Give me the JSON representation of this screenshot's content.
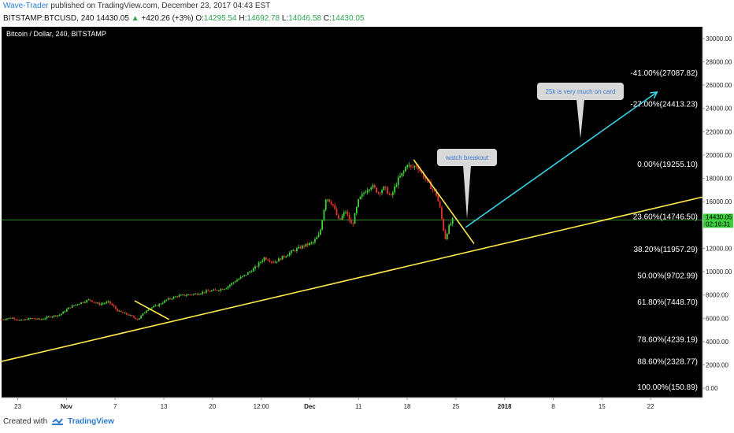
{
  "header": {
    "author": "Wave-Trader",
    "published_text": "published on TradingView.com, December 23, 2017 04:43 EST",
    "symbol_line": "BITSTAMP:BTCUSD, 240",
    "last": "14430.05",
    "change": "+420.26 (+3%)",
    "open_label": "O:",
    "open": "14295.54",
    "high_label": "H:",
    "high": "14692.78",
    "low_label": "L:",
    "low": "14046.58",
    "close_label": "C:",
    "close": "14430.05"
  },
  "footer": {
    "created_with": "Created with",
    "brand": "TradingView"
  },
  "chart_data": {
    "type": "candlestick",
    "title": "Bitcoin / Dollar, 240, BITSTAMP",
    "x_tick_labels": [
      "23",
      "Nov",
      "7",
      "13",
      "20",
      "12:00",
      "Dec",
      "11",
      "18",
      "25",
      "2018",
      "8",
      "15",
      "22"
    ],
    "y_tick_labels": [
      "30000.00",
      "28000.00",
      "26000.00",
      "24000.00",
      "22000.00",
      "20000.00",
      "18000.00",
      "16000.00",
      "14000.00",
      "12000.00",
      "10000.00",
      "8000.00",
      "6000.00",
      "4000.00",
      "2000.00",
      "0.00"
    ],
    "ylim": [
      -800,
      31000
    ],
    "current_price": "14430.05",
    "countdown": "02:16:31",
    "fib_levels": [
      {
        "label": "-41.00%(27087.82)",
        "value": 27087.82
      },
      {
        "label": "-27.00%(24413.23)",
        "value": 24413.23
      },
      {
        "label": "0.00%(19255.10)",
        "value": 19255.1
      },
      {
        "label": "23.60%(14746.50)",
        "value": 14746.5
      },
      {
        "label": "38.20%(11957.29)",
        "value": 11957.29
      },
      {
        "label": "50.00%(9702.99)",
        "value": 9702.99
      },
      {
        "label": "61.80%(7448.70)",
        "value": 7448.7
      },
      {
        "label": "78.60%(4239.19)",
        "value": 4239.19
      },
      {
        "label": "88.60%(2328.77)",
        "value": 2328.77
      },
      {
        "label": "100.00%(150.89)",
        "value": 150.89
      }
    ],
    "annotations": [
      {
        "text": "watch breakout"
      },
      {
        "text": "25k is very much on card"
      }
    ],
    "price_path": [
      [
        0,
        5900
      ],
      [
        1.5,
        6050
      ],
      [
        3,
        5800
      ],
      [
        4.5,
        6000
      ],
      [
        6,
        5900
      ],
      [
        7.5,
        6150
      ],
      [
        9,
        6300
      ],
      [
        10.5,
        6950
      ],
      [
        12,
        7300
      ],
      [
        13.5,
        7600
      ],
      [
        15,
        7200
      ],
      [
        16.5,
        7400
      ],
      [
        18,
        6600
      ],
      [
        19.5,
        6300
      ],
      [
        21,
        5900
      ],
      [
        22.5,
        6800
      ],
      [
        24,
        7100
      ],
      [
        25.5,
        7600
      ],
      [
        27,
        7900
      ],
      [
        28.5,
        8000
      ],
      [
        30,
        8100
      ],
      [
        31.5,
        8300
      ],
      [
        33,
        8400
      ],
      [
        34.5,
        8600
      ],
      [
        36,
        9200
      ],
      [
        37.5,
        9700
      ],
      [
        39,
        10300
      ],
      [
        40.5,
        11200
      ],
      [
        42,
        10800
      ],
      [
        43.5,
        11300
      ],
      [
        45,
        11800
      ],
      [
        46.5,
        12200
      ],
      [
        48,
        12500
      ],
      [
        49,
        13200
      ],
      [
        50,
        16400
      ],
      [
        51,
        15800
      ],
      [
        52,
        14300
      ],
      [
        53,
        15200
      ],
      [
        54,
        13900
      ],
      [
        55,
        16100
      ],
      [
        56,
        16900
      ],
      [
        57,
        17400
      ],
      [
        58,
        16800
      ],
      [
        59,
        17200
      ],
      [
        60,
        16400
      ],
      [
        61,
        17800
      ],
      [
        62,
        18600
      ],
      [
        62.5,
        19300
      ],
      [
        63,
        18900
      ],
      [
        64,
        19100
      ],
      [
        65,
        18200
      ],
      [
        66,
        17400
      ],
      [
        67,
        16600
      ],
      [
        67.6,
        15300
      ],
      [
        68,
        13900
      ],
      [
        68.4,
        12800
      ],
      [
        68.8,
        13700
      ],
      [
        69.2,
        14100
      ],
      [
        69.5,
        14430
      ]
    ],
    "trendlines": [
      {
        "name": "support",
        "color": "#ffe84d",
        "from": [
          0,
          2300
        ],
        "to": [
          108,
          16400
        ]
      },
      {
        "name": "short-resistance-nov",
        "color": "#ffe84d",
        "from": [
          20.5,
          7500
        ],
        "to": [
          25.8,
          5900
        ]
      },
      {
        "name": "short-resistance-dec",
        "color": "#ffe84d",
        "from": [
          63.5,
          19600
        ],
        "to": [
          72.8,
          12400
        ]
      },
      {
        "name": "target-arrow",
        "color": "#36d3e6",
        "from": [
          71.5,
          13800
        ],
        "to": [
          101,
          25400
        ]
      }
    ],
    "horizontal_line": {
      "value": 14430.05,
      "color": "#2e8b2e"
    },
    "x_range": [
      0,
      108
    ],
    "colors": {
      "up": "#43d13a",
      "down": "#e3352a",
      "background": "#000000"
    },
    "grid": false,
    "legend": "none"
  }
}
